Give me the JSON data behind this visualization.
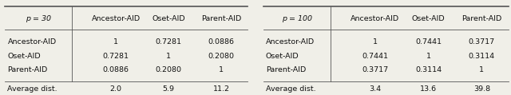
{
  "table1": {
    "header_col": "p = 30",
    "col_headers": [
      "Ancestor-AID",
      "Oset-AID",
      "Parent-AID"
    ],
    "row_labels": [
      "Ancestor-AID",
      "Oset-AID",
      "Parent-AID",
      "Average dist."
    ],
    "rows": [
      [
        "1",
        "0.7281",
        "0.0886"
      ],
      [
        "0.7281",
        "1",
        "0.2080"
      ],
      [
        "0.0886",
        "0.2080",
        "1"
      ],
      [
        "2.0",
        "5.9",
        "11.2"
      ]
    ]
  },
  "table2": {
    "header_col": "p = 100",
    "col_headers": [
      "Ancestor-AID",
      "Oset-AID",
      "Parent-AID"
    ],
    "row_labels": [
      "Ancestor-AID",
      "Oset-AID",
      "Parent-AID",
      "Average dist."
    ],
    "rows": [
      [
        "1",
        "0.7441",
        "0.3717"
      ],
      [
        "0.7441",
        "1",
        "0.3114"
      ],
      [
        "0.3717",
        "0.3114",
        "1"
      ],
      [
        "3.4",
        "13.6",
        "39.8"
      ]
    ]
  },
  "bg_color": "#f0efe8",
  "line_color": "#555555",
  "text_color": "#111111",
  "font_size": 6.8
}
